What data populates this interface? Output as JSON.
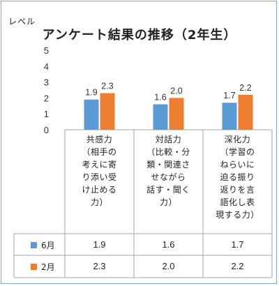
{
  "chart_data": {
    "type": "bar",
    "title": "アンケート結果の推移（2年生）",
    "ylabel": "レベル",
    "ylim": [
      0,
      5
    ],
    "yticks": [
      0,
      1,
      2,
      3,
      4,
      5
    ],
    "grid": false,
    "categories": [
      [
        "共感力",
        "（相手の",
        "考えに寄",
        "り添い受",
        "け止める",
        "力）"
      ],
      [
        "対話力",
        "（比較・分",
        "類・関連さ",
        "せながら",
        "話す・聞く",
        "力）"
      ],
      [
        "深化力",
        "（学習の",
        "ねらいに",
        "迫る振り",
        "返りを言",
        "語化し表",
        "現する力）"
      ]
    ],
    "series": [
      {
        "name": "6月",
        "color": "#5b9bd5",
        "values": [
          1.9,
          1.6,
          1.7
        ]
      },
      {
        "name": "2月",
        "color": "#ed7d31",
        "values": [
          2.3,
          2.0,
          2.2
        ]
      }
    ],
    "table_values": [
      [
        "1.9",
        "1.6",
        "1.7"
      ],
      [
        "2.3",
        "2.0",
        "2.2"
      ]
    ]
  }
}
